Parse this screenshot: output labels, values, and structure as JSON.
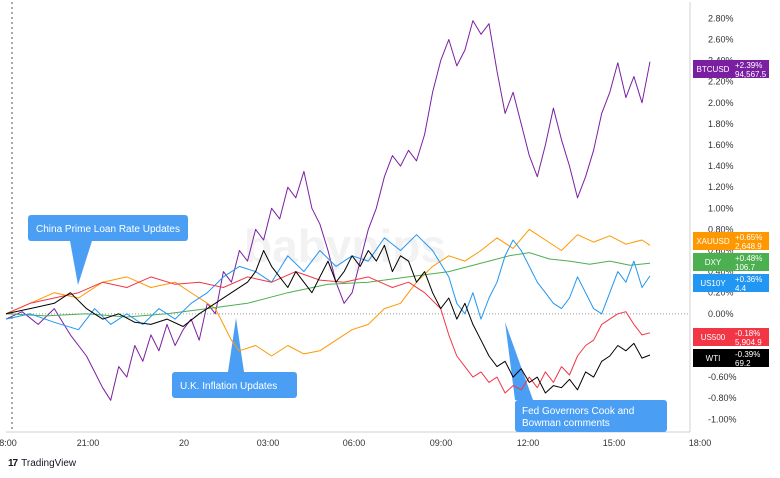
{
  "chart_data": {
    "type": "line",
    "title": "",
    "xlabel": "",
    "ylabel": "",
    "x_ticks": [
      "8:00",
      "21:00",
      "20",
      "03:00",
      "06:00",
      "09:00",
      "12:00",
      "15:00",
      "18:00"
    ],
    "y_ticks": [
      "-1.00%",
      "-0.80%",
      "-0.60%",
      "-0.40%",
      "-0.20%",
      "0.00%",
      "0.20%",
      "0.40%",
      "0.60%",
      "0.80%",
      "1.00%",
      "1.20%",
      "1.40%",
      "1.60%",
      "1.80%",
      "2.00%",
      "2.20%",
      "2.40%",
      "2.60%",
      "2.80%"
    ],
    "ylim": [
      -1.12,
      2.88
    ],
    "grid": false,
    "zero_line": true,
    "series": [
      {
        "name": "BTCUSD",
        "change": "+2.39%",
        "price": "94,567.5",
        "color": "#7b1fa2",
        "points": [
          [
            0,
            -0.05
          ],
          [
            4,
            0.02
          ],
          [
            8,
            -0.1
          ],
          [
            12,
            0.05
          ],
          [
            16,
            -0.2
          ],
          [
            20,
            -0.4
          ],
          [
            22,
            -0.55
          ],
          [
            24,
            -0.7
          ],
          [
            26,
            -0.82
          ],
          [
            28,
            -0.5
          ],
          [
            30,
            -0.6
          ],
          [
            32,
            -0.3
          ],
          [
            34,
            -0.45
          ],
          [
            36,
            -0.2
          ],
          [
            38,
            -0.35
          ],
          [
            40,
            -0.1
          ],
          [
            42,
            -0.3
          ],
          [
            44,
            -0.15
          ],
          [
            46,
            -0.05
          ],
          [
            48,
            -0.25
          ],
          [
            50,
            0.1
          ],
          [
            52,
            0.0
          ],
          [
            54,
            0.4
          ],
          [
            56,
            0.3
          ],
          [
            58,
            0.6
          ],
          [
            60,
            0.5
          ],
          [
            62,
            0.8
          ],
          [
            64,
            0.7
          ],
          [
            66,
            1.0
          ],
          [
            68,
            0.9
          ],
          [
            70,
            1.2
          ],
          [
            72,
            1.1
          ],
          [
            74,
            1.35
          ],
          [
            76,
            1.0
          ],
          [
            78,
            0.85
          ],
          [
            80,
            0.6
          ],
          [
            82,
            0.3
          ],
          [
            84,
            0.1
          ],
          [
            86,
            0.2
          ],
          [
            88,
            0.5
          ],
          [
            90,
            0.8
          ],
          [
            92,
            1.0
          ],
          [
            94,
            1.3
          ],
          [
            96,
            1.5
          ],
          [
            98,
            1.4
          ],
          [
            100,
            1.55
          ],
          [
            102,
            1.45
          ],
          [
            104,
            1.7
          ],
          [
            106,
            2.1
          ],
          [
            108,
            2.4
          ],
          [
            110,
            2.6
          ],
          [
            112,
            2.35
          ],
          [
            114,
            2.5
          ],
          [
            116,
            2.78
          ],
          [
            118,
            2.65
          ],
          [
            120,
            2.75
          ],
          [
            122,
            2.3
          ],
          [
            124,
            1.9
          ],
          [
            126,
            2.1
          ],
          [
            128,
            1.8
          ],
          [
            130,
            1.5
          ],
          [
            132,
            1.3
          ],
          [
            134,
            1.6
          ],
          [
            136,
            1.95
          ],
          [
            138,
            1.65
          ],
          [
            140,
            1.4
          ],
          [
            142,
            1.1
          ],
          [
            144,
            1.3
          ],
          [
            146,
            1.55
          ],
          [
            148,
            1.9
          ],
          [
            150,
            2.1
          ],
          [
            152,
            2.38
          ],
          [
            154,
            2.05
          ],
          [
            156,
            2.25
          ],
          [
            158,
            2.0
          ],
          [
            160,
            2.39
          ]
        ]
      },
      {
        "name": "XAUUSD",
        "change": "+0.65%",
        "price": "2,648.9",
        "color": "#ff9800",
        "points": [
          [
            0,
            0.0
          ],
          [
            6,
            0.1
          ],
          [
            12,
            0.2
          ],
          [
            18,
            0.15
          ],
          [
            24,
            0.3
          ],
          [
            30,
            0.35
          ],
          [
            36,
            0.25
          ],
          [
            42,
            0.3
          ],
          [
            48,
            0.15
          ],
          [
            52,
            0.05
          ],
          [
            54,
            -0.1
          ],
          [
            56,
            -0.25
          ],
          [
            58,
            -0.35
          ],
          [
            62,
            -0.3
          ],
          [
            66,
            -0.4
          ],
          [
            70,
            -0.3
          ],
          [
            74,
            -0.38
          ],
          [
            78,
            -0.35
          ],
          [
            82,
            -0.25
          ],
          [
            86,
            -0.15
          ],
          [
            90,
            -0.1
          ],
          [
            94,
            0.05
          ],
          [
            98,
            0.1
          ],
          [
            102,
            0.3
          ],
          [
            106,
            0.45
          ],
          [
            110,
            0.55
          ],
          [
            114,
            0.5
          ],
          [
            118,
            0.6
          ],
          [
            122,
            0.72
          ],
          [
            126,
            0.62
          ],
          [
            130,
            0.8
          ],
          [
            134,
            0.7
          ],
          [
            138,
            0.6
          ],
          [
            142,
            0.75
          ],
          [
            146,
            0.68
          ],
          [
            150,
            0.74
          ],
          [
            154,
            0.66
          ],
          [
            158,
            0.7
          ],
          [
            160,
            0.65
          ]
        ]
      },
      {
        "name": "DXY",
        "change": "+0.48%",
        "price": "106.7",
        "color": "#4caf50",
        "points": [
          [
            0,
            0.0
          ],
          [
            10,
            -0.02
          ],
          [
            20,
            0.0
          ],
          [
            30,
            -0.03
          ],
          [
            40,
            0.0
          ],
          [
            50,
            0.05
          ],
          [
            60,
            0.1
          ],
          [
            70,
            0.2
          ],
          [
            80,
            0.28
          ],
          [
            90,
            0.3
          ],
          [
            100,
            0.35
          ],
          [
            110,
            0.4
          ],
          [
            115,
            0.45
          ],
          [
            120,
            0.5
          ],
          [
            125,
            0.55
          ],
          [
            130,
            0.58
          ],
          [
            135,
            0.52
          ],
          [
            140,
            0.5
          ],
          [
            145,
            0.47
          ],
          [
            150,
            0.5
          ],
          [
            155,
            0.46
          ],
          [
            160,
            0.48
          ]
        ]
      },
      {
        "name": "US10Y",
        "change": "+0.36%",
        "price": "4.4",
        "color": "#2196f3",
        "points": [
          [
            0,
            -0.05
          ],
          [
            6,
            0.0
          ],
          [
            12,
            -0.08
          ],
          [
            18,
            -0.15
          ],
          [
            22,
            0.05
          ],
          [
            26,
            -0.1
          ],
          [
            30,
            0.0
          ],
          [
            34,
            -0.1
          ],
          [
            38,
            0.05
          ],
          [
            42,
            -0.05
          ],
          [
            46,
            0.1
          ],
          [
            50,
            0.2
          ],
          [
            54,
            0.35
          ],
          [
            58,
            0.45
          ],
          [
            62,
            0.4
          ],
          [
            66,
            0.3
          ],
          [
            70,
            0.55
          ],
          [
            74,
            0.4
          ],
          [
            78,
            0.6
          ],
          [
            82,
            0.45
          ],
          [
            86,
            0.55
          ],
          [
            90,
            0.5
          ],
          [
            94,
            0.72
          ],
          [
            98,
            0.6
          ],
          [
            102,
            0.75
          ],
          [
            106,
            0.6
          ],
          [
            110,
            0.35
          ],
          [
            112,
            0.1
          ],
          [
            114,
            0.0
          ],
          [
            116,
            0.2
          ],
          [
            118,
            -0.05
          ],
          [
            120,
            0.15
          ],
          [
            122,
            0.3
          ],
          [
            124,
            0.55
          ],
          [
            126,
            0.7
          ],
          [
            128,
            0.6
          ],
          [
            130,
            0.45
          ],
          [
            132,
            0.3
          ],
          [
            134,
            0.2
          ],
          [
            136,
            0.1
          ],
          [
            138,
            0.05
          ],
          [
            140,
            0.15
          ],
          [
            142,
            0.35
          ],
          [
            144,
            0.2
          ],
          [
            146,
            0.05
          ],
          [
            148,
            0.0
          ],
          [
            150,
            0.2
          ],
          [
            152,
            0.4
          ],
          [
            154,
            0.3
          ],
          [
            156,
            0.5
          ],
          [
            158,
            0.25
          ],
          [
            160,
            0.36
          ]
        ]
      },
      {
        "name": "US500",
        "change": "-0.18%",
        "price": "5,904.9",
        "color": "#f23645",
        "points": [
          [
            0,
            0.0
          ],
          [
            6,
            0.1
          ],
          [
            12,
            0.15
          ],
          [
            18,
            0.2
          ],
          [
            24,
            0.3
          ],
          [
            30,
            0.25
          ],
          [
            36,
            0.35
          ],
          [
            42,
            0.28
          ],
          [
            48,
            0.3
          ],
          [
            54,
            0.25
          ],
          [
            60,
            0.35
          ],
          [
            66,
            0.3
          ],
          [
            72,
            0.4
          ],
          [
            78,
            0.32
          ],
          [
            84,
            0.3
          ],
          [
            90,
            0.35
          ],
          [
            96,
            0.25
          ],
          [
            100,
            0.3
          ],
          [
            104,
            0.2
          ],
          [
            108,
            0.05
          ],
          [
            110,
            -0.2
          ],
          [
            112,
            -0.4
          ],
          [
            114,
            -0.5
          ],
          [
            116,
            -0.6
          ],
          [
            118,
            -0.55
          ],
          [
            120,
            -0.65
          ],
          [
            122,
            -0.6
          ],
          [
            124,
            -0.75
          ],
          [
            126,
            -0.68
          ],
          [
            128,
            -0.72
          ],
          [
            130,
            -0.6
          ],
          [
            132,
            -0.7
          ],
          [
            134,
            -0.55
          ],
          [
            136,
            -0.65
          ],
          [
            138,
            -0.5
          ],
          [
            140,
            -0.58
          ],
          [
            142,
            -0.4
          ],
          [
            144,
            -0.3
          ],
          [
            146,
            -0.25
          ],
          [
            148,
            -0.1
          ],
          [
            150,
            -0.05
          ],
          [
            152,
            0.0
          ],
          [
            154,
            0.02
          ],
          [
            156,
            -0.1
          ],
          [
            158,
            -0.2
          ],
          [
            160,
            -0.18
          ]
        ]
      },
      {
        "name": "WTI",
        "change": "-0.39%",
        "price": "69.2",
        "color": "#000000",
        "points": [
          [
            0,
            0.0
          ],
          [
            6,
            0.05
          ],
          [
            12,
            0.1
          ],
          [
            16,
            0.2
          ],
          [
            20,
            0.05
          ],
          [
            24,
            -0.05
          ],
          [
            28,
            0.0
          ],
          [
            32,
            -0.08
          ],
          [
            36,
            -0.1
          ],
          [
            40,
            -0.05
          ],
          [
            44,
            -0.12
          ],
          [
            48,
            0.0
          ],
          [
            52,
            0.1
          ],
          [
            56,
            0.2
          ],
          [
            60,
            0.3
          ],
          [
            62,
            0.4
          ],
          [
            64,
            0.6
          ],
          [
            66,
            0.45
          ],
          [
            68,
            0.35
          ],
          [
            70,
            0.25
          ],
          [
            72,
            0.4
          ],
          [
            74,
            0.3
          ],
          [
            76,
            0.2
          ],
          [
            78,
            0.35
          ],
          [
            80,
            0.5
          ],
          [
            82,
            0.3
          ],
          [
            84,
            0.4
          ],
          [
            86,
            0.55
          ],
          [
            88,
            0.45
          ],
          [
            90,
            0.6
          ],
          [
            92,
            0.5
          ],
          [
            94,
            0.65
          ],
          [
            96,
            0.4
          ],
          [
            98,
            0.55
          ],
          [
            100,
            0.5
          ],
          [
            102,
            0.3
          ],
          [
            104,
            0.4
          ],
          [
            106,
            0.2
          ],
          [
            108,
            0.05
          ],
          [
            110,
            0.15
          ],
          [
            112,
            -0.05
          ],
          [
            114,
            0.1
          ],
          [
            116,
            -0.1
          ],
          [
            118,
            -0.25
          ],
          [
            120,
            -0.4
          ],
          [
            122,
            -0.5
          ],
          [
            124,
            -0.45
          ],
          [
            126,
            -0.6
          ],
          [
            128,
            -0.52
          ],
          [
            130,
            -0.65
          ],
          [
            132,
            -0.6
          ],
          [
            134,
            -0.75
          ],
          [
            136,
            -0.68
          ],
          [
            138,
            -0.7
          ],
          [
            140,
            -0.62
          ],
          [
            142,
            -0.72
          ],
          [
            144,
            -0.55
          ],
          [
            146,
            -0.6
          ],
          [
            148,
            -0.45
          ],
          [
            150,
            -0.4
          ],
          [
            152,
            -0.3
          ],
          [
            154,
            -0.35
          ],
          [
            156,
            -0.28
          ],
          [
            158,
            -0.42
          ],
          [
            160,
            -0.39
          ]
        ]
      }
    ],
    "annotations": [
      {
        "text": "China Prime Loan Rate Updates"
      },
      {
        "text": "U.K. Inflation Updates"
      },
      {
        "text": "Fed Governors Cook and Bowman comments"
      }
    ],
    "annotation_color": "#4a9ff5"
  },
  "branding": {
    "logo_mark": "17",
    "logo_text": "TradingView",
    "watermark": "babypips"
  }
}
